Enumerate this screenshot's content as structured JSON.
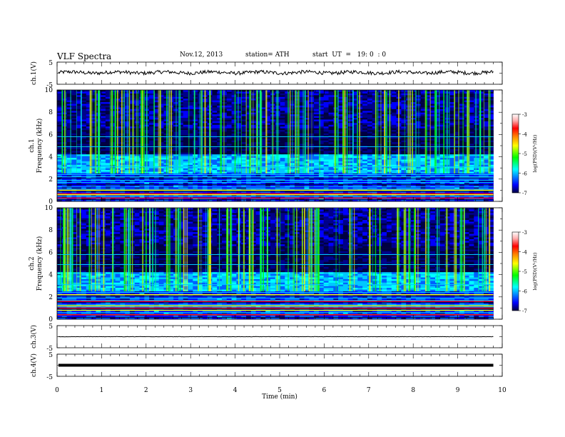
{
  "header": {
    "title": "VLF  Spectra",
    "date": "Nov.12, 2013",
    "station": "station= ATH",
    "start_ut": "start  UT  =   19: 0  : 0"
  },
  "chart_data": [
    {
      "type": "line",
      "panel": "ch1-voltage",
      "ylabel": "ch.1(V)",
      "yticks": [
        "5",
        "-5"
      ],
      "ylim": [
        -5,
        5
      ],
      "baseline": 0.3,
      "color": "#000000"
    },
    {
      "type": "heatmap",
      "panel": "ch1-spectrogram",
      "ylabel_line1": "ch.1",
      "ylabel_line2": "Frequency  (kHz)",
      "yticks": [
        "0",
        "2",
        "4",
        "6",
        "8",
        "10"
      ],
      "ylim": [
        0,
        10
      ],
      "strong_bands_khz": [
        0.3,
        0.6,
        0.7,
        1.0
      ],
      "colorbar": {
        "label": "log(PSD)(V²/Hz)",
        "ticks": [
          "-3",
          "-4",
          "-5",
          "-6",
          "-7"
        ],
        "range": [
          -7,
          -3
        ]
      }
    },
    {
      "type": "heatmap",
      "panel": "ch2-spectrogram",
      "ylabel_line1": "ch.2",
      "ylabel_line2": "Frequency  (kHz)",
      "yticks": [
        "0",
        "2",
        "4",
        "6",
        "8",
        "10"
      ],
      "ylim": [
        0,
        10
      ],
      "strong_bands_khz": [
        0.4,
        0.8,
        1.0,
        1.2,
        1.6,
        2.2
      ],
      "colorbar": {
        "label": "log(PSD)(V²/Hz)",
        "ticks": [
          "-3",
          "-4",
          "-5",
          "-6",
          "-7"
        ],
        "range": [
          -7,
          -3
        ]
      }
    },
    {
      "type": "line",
      "panel": "ch3-voltage",
      "ylabel": "ch.3(V)",
      "yticks": [
        "5",
        "-5"
      ],
      "ylim": [
        -5,
        5
      ],
      "baseline": 0,
      "color": "#000000"
    },
    {
      "type": "line",
      "panel": "ch4-voltage",
      "ylabel": "ch.4(V)",
      "yticks": [
        "5",
        "-5"
      ],
      "ylim": [
        -5,
        5
      ],
      "baseline": 0,
      "color": "#000000"
    }
  ],
  "x_axis": {
    "label": "Time  (min)",
    "ticks": [
      "0",
      "1",
      "2",
      "3",
      "4",
      "5",
      "6",
      "7",
      "8",
      "9",
      "10"
    ],
    "xlim": [
      0,
      10
    ],
    "data_end": 9.8
  },
  "colors": {
    "colormap": [
      "#000060",
      "#0000ff",
      "#00ffff",
      "#00ff00",
      "#ffff00",
      "#ff8000",
      "#ff0000",
      "#ffc0c0",
      "#ffffff"
    ]
  }
}
